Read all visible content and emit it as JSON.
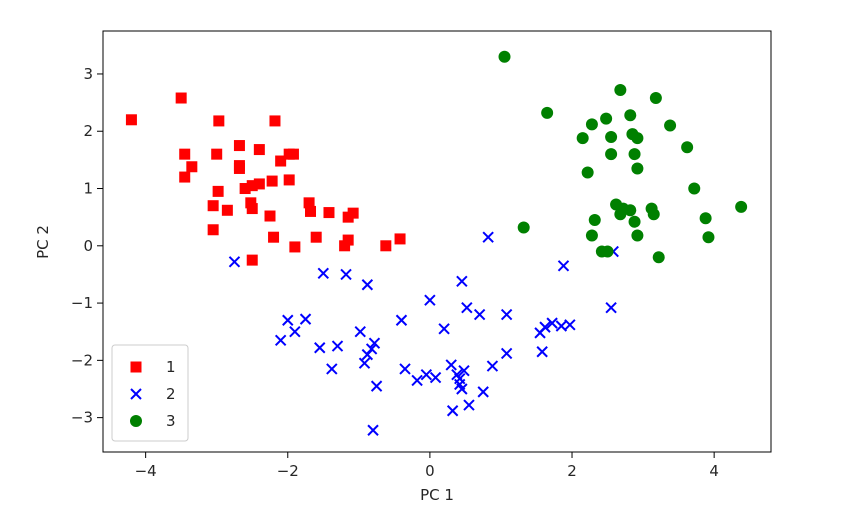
{
  "chart_data": {
    "type": "scatter",
    "title": "",
    "xlabel": "PC 1",
    "ylabel": "PC 2",
    "xlim": [
      -4.6,
      4.8
    ],
    "ylim": [
      -3.6,
      3.75
    ],
    "xticks": [
      -4,
      -2,
      0,
      2,
      4
    ],
    "yticks": [
      -3,
      -2,
      -1,
      0,
      1,
      2,
      3
    ],
    "xtick_labels": [
      "−4",
      "−2",
      "0",
      "2",
      "4"
    ],
    "ytick_labels": [
      "−3",
      "−2",
      "−1",
      "0",
      "1",
      "2",
      "3"
    ],
    "grid": false,
    "legend": {
      "placement": "lower-left"
    },
    "series": [
      {
        "name": "1",
        "marker": "square",
        "color": "#ff0000",
        "points": [
          [
            -4.2,
            2.2
          ],
          [
            -3.5,
            2.58
          ],
          [
            -2.97,
            2.18
          ],
          [
            -2.18,
            2.18
          ],
          [
            -3.45,
            1.6
          ],
          [
            -3.0,
            1.6
          ],
          [
            -2.68,
            1.75
          ],
          [
            -2.4,
            1.68
          ],
          [
            -1.98,
            1.6
          ],
          [
            -1.92,
            1.6
          ],
          [
            -3.35,
            1.38
          ],
          [
            -3.45,
            1.2
          ],
          [
            -2.68,
            1.4
          ],
          [
            -2.68,
            1.35
          ],
          [
            -2.1,
            1.48
          ],
          [
            -2.22,
            1.13
          ],
          [
            -1.98,
            1.15
          ],
          [
            -2.98,
            0.95
          ],
          [
            -2.6,
            1.0
          ],
          [
            -2.5,
            1.05
          ],
          [
            -2.4,
            1.08
          ],
          [
            -3.05,
            0.7
          ],
          [
            -2.85,
            0.62
          ],
          [
            -2.52,
            0.75
          ],
          [
            -2.5,
            0.65
          ],
          [
            -2.25,
            0.52
          ],
          [
            -1.7,
            0.75
          ],
          [
            -1.68,
            0.6
          ],
          [
            -1.42,
            0.58
          ],
          [
            -1.15,
            0.5
          ],
          [
            -1.08,
            0.57
          ],
          [
            -3.05,
            0.28
          ],
          [
            -2.2,
            0.15
          ],
          [
            -1.6,
            0.15
          ],
          [
            -1.9,
            -0.02
          ],
          [
            -1.2,
            0.0
          ],
          [
            -1.15,
            0.1
          ],
          [
            -0.62,
            0.0
          ],
          [
            -0.42,
            0.12
          ],
          [
            -2.5,
            -0.25
          ]
        ]
      },
      {
        "name": "2",
        "marker": "x",
        "color": "#0000ff",
        "points": [
          [
            -2.75,
            -0.28
          ],
          [
            -1.5,
            -0.48
          ],
          [
            -1.18,
            -0.5
          ],
          [
            -0.88,
            -0.68
          ],
          [
            0.45,
            -0.62
          ],
          [
            0.82,
            0.15
          ],
          [
            1.88,
            -0.35
          ],
          [
            -2.0,
            -1.3
          ],
          [
            -1.75,
            -1.28
          ],
          [
            -1.9,
            -1.5
          ],
          [
            -2.1,
            -1.65
          ],
          [
            -1.55,
            -1.78
          ],
          [
            -1.3,
            -1.75
          ],
          [
            -0.98,
            -1.5
          ],
          [
            -0.4,
            -1.3
          ],
          [
            0.0,
            -0.95
          ],
          [
            0.2,
            -1.45
          ],
          [
            0.52,
            -1.08
          ],
          [
            0.7,
            -1.2
          ],
          [
            1.08,
            -1.2
          ],
          [
            -0.78,
            -1.7
          ],
          [
            -0.88,
            -1.9
          ],
          [
            -0.82,
            -1.8
          ],
          [
            -0.92,
            -2.05
          ],
          [
            -1.38,
            -2.15
          ],
          [
            -0.75,
            -2.45
          ],
          [
            -0.35,
            -2.15
          ],
          [
            -0.18,
            -2.35
          ],
          [
            -0.05,
            -2.25
          ],
          [
            0.08,
            -2.3
          ],
          [
            0.3,
            -2.08
          ],
          [
            0.38,
            -2.25
          ],
          [
            0.42,
            -2.32
          ],
          [
            0.48,
            -2.18
          ],
          [
            0.42,
            -2.42
          ],
          [
            0.45,
            -2.5
          ],
          [
            0.32,
            -2.88
          ],
          [
            0.55,
            -2.78
          ],
          [
            0.75,
            -2.55
          ],
          [
            0.88,
            -2.1
          ],
          [
            1.08,
            -1.88
          ],
          [
            1.55,
            -1.52
          ],
          [
            1.62,
            -1.42
          ],
          [
            1.72,
            -1.35
          ],
          [
            1.85,
            -1.4
          ],
          [
            1.97,
            -1.38
          ],
          [
            1.58,
            -1.85
          ],
          [
            2.58,
            -0.1
          ],
          [
            2.55,
            -1.08
          ],
          [
            -0.8,
            -3.22
          ]
        ]
      },
      {
        "name": "3",
        "marker": "circle",
        "color": "#008000",
        "points": [
          [
            1.05,
            3.3
          ],
          [
            1.65,
            2.32
          ],
          [
            2.68,
            2.72
          ],
          [
            3.18,
            2.58
          ],
          [
            2.48,
            2.22
          ],
          [
            2.82,
            2.28
          ],
          [
            3.38,
            2.1
          ],
          [
            2.28,
            2.12
          ],
          [
            2.15,
            1.88
          ],
          [
            2.55,
            1.9
          ],
          [
            2.85,
            1.95
          ],
          [
            2.92,
            1.88
          ],
          [
            3.62,
            1.72
          ],
          [
            2.55,
            1.6
          ],
          [
            2.88,
            1.6
          ],
          [
            2.92,
            1.35
          ],
          [
            2.22,
            1.28
          ],
          [
            3.72,
            1.0
          ],
          [
            2.62,
            0.72
          ],
          [
            2.72,
            0.65
          ],
          [
            2.82,
            0.62
          ],
          [
            3.12,
            0.65
          ],
          [
            3.15,
            0.55
          ],
          [
            2.68,
            0.55
          ],
          [
            2.32,
            0.45
          ],
          [
            2.88,
            0.42
          ],
          [
            3.88,
            0.48
          ],
          [
            4.38,
            0.68
          ],
          [
            1.32,
            0.32
          ],
          [
            2.28,
            0.18
          ],
          [
            2.92,
            0.18
          ],
          [
            3.92,
            0.15
          ],
          [
            2.42,
            -0.1
          ],
          [
            2.5,
            -0.1
          ],
          [
            3.22,
            -0.2
          ]
        ]
      }
    ]
  }
}
